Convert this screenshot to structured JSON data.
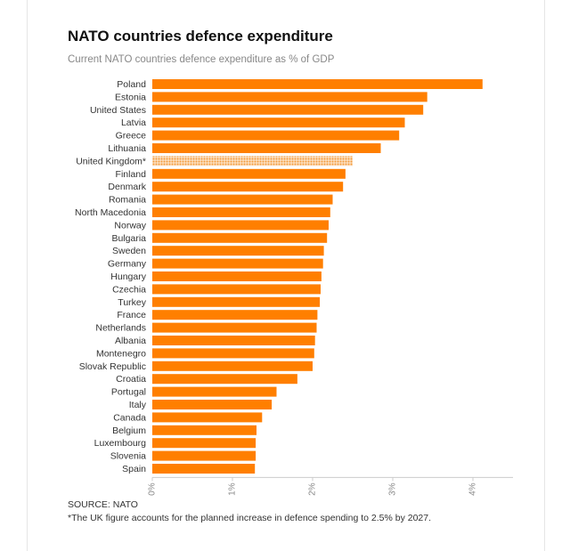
{
  "title": "NATO countries defence expenditure",
  "subtitle": "Current NATO countries defence expenditure as % of GDP",
  "source": "SOURCE: NATO",
  "footnote": "*The UK figure accounts for the planned increase in defence spending to 2.5% by 2027.",
  "colors": {
    "bar": "#FF7F00",
    "highlight_pattern": "#F5C28A",
    "axis": "#cccccc"
  },
  "chart_data": {
    "type": "bar",
    "orientation": "horizontal",
    "title": "NATO countries defence expenditure",
    "subtitle": "Current NATO countries defence expenditure as % of GDP",
    "xlabel": "",
    "ylabel": "",
    "xlim": [
      0,
      4.5
    ],
    "ticks": [
      0,
      1,
      2,
      3,
      4
    ],
    "tick_labels": [
      "0%",
      "1%",
      "2%",
      "3%",
      "4%"
    ],
    "categories": [
      "Poland",
      "Estonia",
      "United States",
      "Latvia",
      "Greece",
      "Lithuania",
      "United Kingdom*",
      "Finland",
      "Denmark",
      "Romania",
      "North Macedonia",
      "Norway",
      "Bulgaria",
      "Sweden",
      "Germany",
      "Hungary",
      "Czechia",
      "Turkey",
      "France",
      "Netherlands",
      "Albania",
      "Montenegro",
      "Slovak Republic",
      "Croatia",
      "Portugal",
      "Italy",
      "Canada",
      "Belgium",
      "Luxembourg",
      "Slovenia",
      "Spain"
    ],
    "values": [
      4.12,
      3.43,
      3.38,
      3.15,
      3.08,
      2.85,
      2.5,
      2.41,
      2.38,
      2.25,
      2.22,
      2.2,
      2.18,
      2.14,
      2.13,
      2.11,
      2.1,
      2.09,
      2.06,
      2.05,
      2.03,
      2.02,
      2.0,
      1.81,
      1.55,
      1.49,
      1.37,
      1.3,
      1.29,
      1.29,
      1.28
    ],
    "highlight": [
      "United Kingdom*"
    ]
  }
}
